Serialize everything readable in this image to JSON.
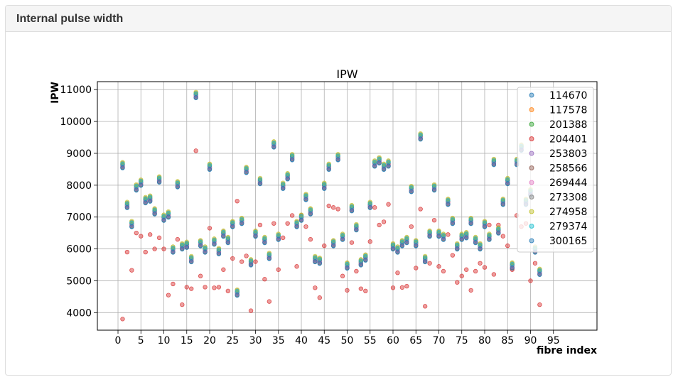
{
  "panel": {
    "title": "Internal pulse width"
  },
  "chart_data": {
    "type": "scatter",
    "title": "IPW",
    "xlabel": "fibre index",
    "ylabel": "IPW",
    "xlim": [
      -4.5,
      104.5
    ],
    "ylim": [
      3450,
      11250
    ],
    "xticks": [
      0,
      5,
      10,
      15,
      20,
      25,
      30,
      35,
      40,
      45,
      50,
      55,
      60,
      65,
      70,
      75,
      80,
      85,
      90,
      95
    ],
    "yticks": [
      4000,
      5000,
      6000,
      7000,
      8000,
      9000,
      10000,
      11000
    ],
    "grid": true,
    "legend_position": "upper right",
    "series": [
      {
        "name": "114670",
        "color": "#1f77b4"
      },
      {
        "name": "117578",
        "color": "#ff7f0e"
      },
      {
        "name": "201388",
        "color": "#2ca02c"
      },
      {
        "name": "204401",
        "color": "#d62728"
      },
      {
        "name": "253803",
        "color": "#9467bd"
      },
      {
        "name": "258566",
        "color": "#8c564b"
      },
      {
        "name": "269444",
        "color": "#e377c2"
      },
      {
        "name": "273308",
        "color": "#7f7f7f"
      },
      {
        "name": "274958",
        "color": "#bcbd22"
      },
      {
        "name": "279374",
        "color": "#17becf"
      },
      {
        "name": "300165",
        "color": "#1f77b4"
      }
    ],
    "fibre_index": [
      1,
      2,
      3,
      4,
      5,
      6,
      7,
      8,
      9,
      10,
      11,
      12,
      13,
      14,
      15,
      16,
      17,
      18,
      19,
      20,
      21,
      22,
      23,
      24,
      25,
      26,
      27,
      28,
      29,
      30,
      31,
      32,
      33,
      34,
      35,
      36,
      37,
      38,
      39,
      40,
      41,
      42,
      43,
      44,
      45,
      46,
      47,
      48,
      49,
      50,
      51,
      52,
      53,
      54,
      55,
      56,
      57,
      58,
      59,
      60,
      61,
      62,
      63,
      64,
      65,
      66,
      67,
      68,
      69,
      70,
      71,
      72,
      73,
      74,
      75,
      76,
      77,
      78,
      79,
      80,
      81,
      82,
      83,
      84,
      85,
      86,
      87,
      88,
      89,
      90,
      91,
      92
    ],
    "ipw_main": [
      8650,
      7400,
      6800,
      7950,
      8100,
      7550,
      7600,
      7200,
      8200,
      7000,
      7100,
      6000,
      8050,
      6100,
      6150,
      5700,
      10850,
      6200,
      6000,
      8600,
      6250,
      5950,
      6500,
      6300,
      6800,
      4650,
      6900,
      8500,
      5600,
      6500,
      8150,
      6300,
      5800,
      9300,
      6400,
      8000,
      8300,
      8900,
      6800,
      7000,
      7650,
      7200,
      5700,
      5650,
      8000,
      8600,
      6200,
      8900,
      6400,
      5500,
      7300,
      6700,
      5600,
      5750,
      7400,
      8700,
      8800,
      8600,
      8700,
      6100,
      6000,
      6200,
      6300,
      7900,
      6200,
      9550,
      5700,
      6500,
      7950,
      6500,
      6400,
      7500,
      6900,
      6100,
      6400,
      6450,
      6900,
      6300,
      6100,
      6800,
      6400,
      8750,
      6600,
      7500,
      8150,
      5500,
      8750,
      9200,
      7500,
      7800,
      6000,
      5300
    ],
    "ipw_204401": [
      3800,
      5900,
      5330,
      6500,
      6400,
      5900,
      6450,
      6000,
      6350,
      6000,
      4550,
      4900,
      6300,
      4250,
      4800,
      4750,
      9080,
      5150,
      4800,
      6650,
      4780,
      4800,
      5350,
      4680,
      5700,
      7500,
      5600,
      5780,
      4060,
      5600,
      6750,
      5050,
      4350,
      6800,
      5350,
      6350,
      6800,
      7050,
      5450,
      7050,
      6700,
      6300,
      4780,
      4470,
      6100,
      7350,
      7300,
      7250,
      5150,
      4700,
      6200,
      5300,
      4750,
      4680,
      6230,
      7300,
      6750,
      6850,
      7400,
      4780,
      5250,
      4790,
      4830,
      6700,
      5400,
      7250,
      4200,
      5550,
      6900,
      5450,
      5300,
      6450,
      5800,
      4950,
      5150,
      5350,
      4700,
      5300,
      5550,
      5420,
      6750,
      5200,
      6750,
      6400,
      6100,
      5350,
      7050,
      6700,
      6800,
      5000,
      5550,
      4250
    ]
  }
}
